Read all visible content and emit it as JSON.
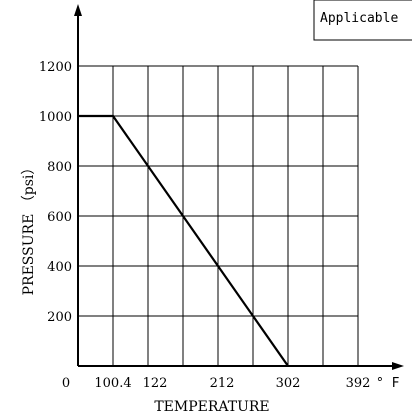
{
  "chart_data": {
    "type": "line",
    "title": "",
    "xlabel": "TEMPERATURE",
    "ylabel": "PRESSURE （psi）",
    "x_unit": "° F",
    "legend_label": "Applicable",
    "legend_placement": "top-right",
    "grid": true,
    "origin_label": "0",
    "x_tick_labels": [
      "100.4",
      "122",
      "212",
      "302",
      "392"
    ],
    "y_tick_labels": [
      "200",
      "400",
      "600",
      "800",
      "1000",
      "1200"
    ],
    "y_ticks": [
      200,
      400,
      600,
      800,
      1000,
      1200
    ],
    "ylim": [
      0,
      1200
    ],
    "series": [
      {
        "x": [
          "0",
          "100.4",
          "302"
        ],
        "y": [
          1000,
          1000,
          0
        ]
      }
    ],
    "colors": {
      "line": "#000000",
      "grid": "#000000"
    }
  }
}
